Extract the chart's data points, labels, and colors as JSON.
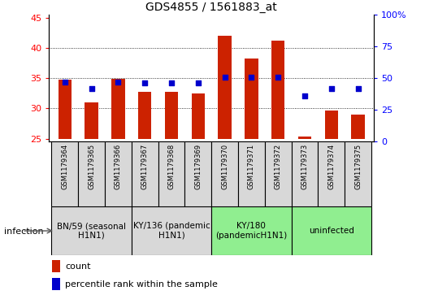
{
  "title": "GDS4855 / 1561883_at",
  "samples": [
    "GSM1179364",
    "GSM1179365",
    "GSM1179366",
    "GSM1179367",
    "GSM1179368",
    "GSM1179369",
    "GSM1179370",
    "GSM1179371",
    "GSM1179372",
    "GSM1179373",
    "GSM1179374",
    "GSM1179375"
  ],
  "counts": [
    34.8,
    31.0,
    34.9,
    32.8,
    32.8,
    32.5,
    42.0,
    38.3,
    41.2,
    25.4,
    29.7,
    29.0
  ],
  "percentile_ranks": [
    47,
    42,
    47,
    46,
    46,
    46,
    51,
    51,
    51,
    36,
    42,
    42
  ],
  "ylim_left": [
    24.5,
    45.5
  ],
  "ylim_right": [
    0,
    100
  ],
  "yticks_left": [
    25,
    30,
    35,
    40,
    45
  ],
  "yticks_right": [
    0,
    25,
    50,
    75,
    100
  ],
  "bar_color": "#cc2200",
  "dot_color": "#0000cc",
  "bar_bottom": 25,
  "groups": [
    {
      "label": "BN/59 (seasonal\nH1N1)",
      "start": 0,
      "end": 3,
      "color": "#d8d8d8"
    },
    {
      "label": "KY/136 (pandemic\nH1N1)",
      "start": 3,
      "end": 6,
      "color": "#d8d8d8"
    },
    {
      "label": "KY/180\n(pandemicH1N1)",
      "start": 6,
      "end": 9,
      "color": "#90ee90"
    },
    {
      "label": "uninfected",
      "start": 9,
      "end": 12,
      "color": "#90ee90"
    }
  ],
  "legend_count_label": "count",
  "legend_percentile_label": "percentile rank within the sample",
  "infection_label": "infection"
}
